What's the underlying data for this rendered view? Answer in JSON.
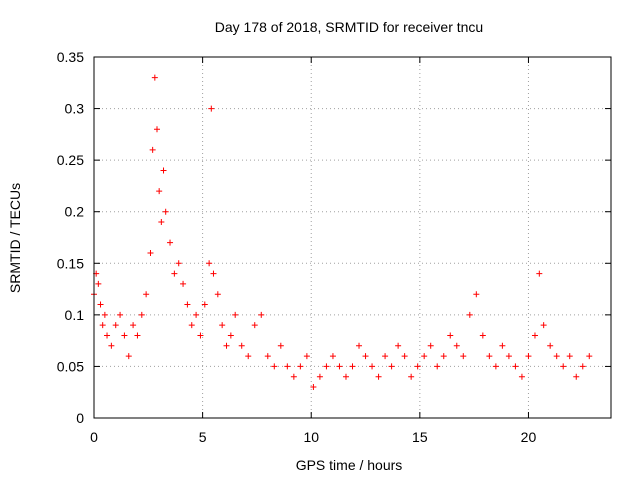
{
  "chart_data": {
    "type": "scatter",
    "title": "Day 178 of 2018, SRMTID for receiver tncu",
    "xlabel": "GPS time / hours",
    "ylabel": "SRMTID / TECUs",
    "xlim": [
      0,
      23.8
    ],
    "ylim": [
      0,
      0.35
    ],
    "x_ticks": [
      0,
      5,
      10,
      15,
      20
    ],
    "x_tick_labels": [
      "0",
      "5",
      "10",
      "15",
      "20"
    ],
    "y_ticks": [
      0,
      0.05,
      0.1,
      0.15,
      0.2,
      0.25,
      0.3,
      0.35
    ],
    "y_tick_labels": [
      "0",
      "0.05",
      "0.1",
      "0.15",
      "0.2",
      "0.25",
      "0.3",
      "0.35"
    ],
    "grid": true,
    "marker": "+",
    "marker_color": "#ff0000",
    "series": [
      {
        "name": "SRMTID",
        "x": [
          0.0,
          0.1,
          0.2,
          0.3,
          0.4,
          0.5,
          0.6,
          0.8,
          1.0,
          1.2,
          1.4,
          1.6,
          1.8,
          2.0,
          2.2,
          2.4,
          2.6,
          2.7,
          2.8,
          2.9,
          3.0,
          3.1,
          3.2,
          3.3,
          3.5,
          3.7,
          3.9,
          4.1,
          4.3,
          4.5,
          4.7,
          4.9,
          5.1,
          5.3,
          5.4,
          5.5,
          5.7,
          5.9,
          6.1,
          6.3,
          6.5,
          6.8,
          7.1,
          7.4,
          7.7,
          8.0,
          8.3,
          8.6,
          8.9,
          9.2,
          9.5,
          9.8,
          10.1,
          10.4,
          10.7,
          11.0,
          11.3,
          11.6,
          11.9,
          12.2,
          12.5,
          12.8,
          13.1,
          13.4,
          13.7,
          14.0,
          14.3,
          14.6,
          14.9,
          15.2,
          15.5,
          15.8,
          16.1,
          16.4,
          16.7,
          17.0,
          17.3,
          17.6,
          17.9,
          18.2,
          18.5,
          18.8,
          19.1,
          19.4,
          19.7,
          20.0,
          20.3,
          20.5,
          20.7,
          21.0,
          21.3,
          21.6,
          21.9,
          22.2,
          22.5,
          22.8
        ],
        "y": [
          0.12,
          0.14,
          0.13,
          0.11,
          0.09,
          0.1,
          0.08,
          0.07,
          0.09,
          0.1,
          0.08,
          0.06,
          0.09,
          0.08,
          0.1,
          0.12,
          0.16,
          0.26,
          0.33,
          0.28,
          0.22,
          0.19,
          0.24,
          0.2,
          0.17,
          0.14,
          0.15,
          0.13,
          0.11,
          0.09,
          0.1,
          0.08,
          0.11,
          0.15,
          0.3,
          0.14,
          0.12,
          0.09,
          0.07,
          0.08,
          0.1,
          0.07,
          0.06,
          0.09,
          0.1,
          0.06,
          0.05,
          0.07,
          0.05,
          0.04,
          0.05,
          0.06,
          0.03,
          0.04,
          0.05,
          0.06,
          0.05,
          0.04,
          0.05,
          0.07,
          0.06,
          0.05,
          0.04,
          0.06,
          0.05,
          0.07,
          0.06,
          0.04,
          0.05,
          0.06,
          0.07,
          0.05,
          0.06,
          0.08,
          0.07,
          0.06,
          0.1,
          0.12,
          0.08,
          0.06,
          0.05,
          0.07,
          0.06,
          0.05,
          0.04,
          0.06,
          0.08,
          0.14,
          0.09,
          0.07,
          0.06,
          0.05,
          0.06,
          0.04,
          0.05,
          0.06
        ]
      }
    ]
  }
}
